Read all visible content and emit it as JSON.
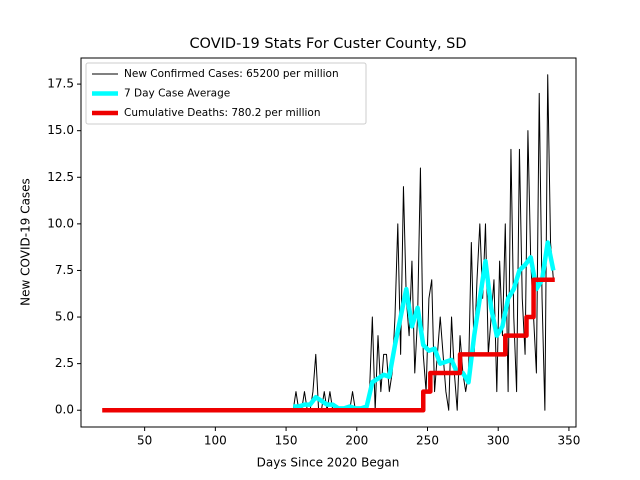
{
  "chart_data": {
    "type": "line",
    "title": "COVID-19 Stats For Custer County, SD",
    "xlabel": "Days Since 2020 Began",
    "ylabel": "New COVID-19 Cases",
    "xlim": [
      5,
      355
    ],
    "ylim": [
      -0.9,
      18.9
    ],
    "xticks": [
      50,
      100,
      150,
      200,
      250,
      300,
      350
    ],
    "yticks": [
      {
        "value": 0,
        "label": "0.0"
      },
      {
        "value": 2.5,
        "label": "2.5"
      },
      {
        "value": 5,
        "label": "5.0"
      },
      {
        "value": 7.5,
        "label": "7.5"
      },
      {
        "value": 10,
        "label": "10.0"
      },
      {
        "value": 12.5,
        "label": "12.5"
      },
      {
        "value": 15,
        "label": "15.0"
      },
      {
        "value": 17.5,
        "label": "17.5"
      }
    ],
    "legend": "upper left",
    "series": [
      {
        "name": "New Confirmed Cases: 65200 per million",
        "color": "#000000",
        "width": 1,
        "x": [
          155,
          157,
          159,
          161,
          163,
          165,
          167,
          169,
          171,
          173,
          175,
          177,
          179,
          181,
          183,
          185,
          187,
          189,
          191,
          193,
          195,
          197,
          199,
          201,
          203,
          205,
          207,
          209,
          211,
          213,
          215,
          217,
          219,
          221,
          223,
          225,
          227,
          229,
          231,
          233,
          235,
          237,
          239,
          241,
          243,
          245,
          247,
          249,
          251,
          253,
          255,
          257,
          259,
          261,
          263,
          265,
          267,
          269,
          271,
          273,
          275,
          277,
          279,
          281,
          283,
          285,
          287,
          289,
          291,
          293,
          295,
          297,
          299,
          301,
          303,
          305,
          307,
          309,
          311,
          313,
          315,
          317,
          319,
          321,
          323,
          325,
          327,
          329,
          331,
          333,
          335,
          337,
          339
        ],
        "values": [
          0,
          1,
          0,
          0,
          1,
          0,
          0,
          1,
          3,
          0,
          0,
          1,
          0,
          1,
          0,
          0,
          0,
          0,
          0,
          0,
          0,
          1,
          0,
          0,
          0,
          0,
          0,
          1,
          5,
          0,
          4,
          1,
          3,
          3,
          1,
          2,
          5,
          10,
          3,
          12,
          6,
          4,
          8,
          2,
          5,
          13,
          3,
          1,
          6,
          7,
          1,
          3,
          5,
          3,
          1,
          0,
          5,
          2,
          0,
          4,
          2,
          1,
          2,
          9,
          3,
          7,
          10,
          6,
          10,
          3,
          5,
          7,
          1,
          8,
          4,
          10,
          1,
          14,
          5,
          1,
          14,
          6,
          3,
          15,
          8,
          5,
          2,
          17,
          6,
          0,
          18,
          9,
          7
        ]
      },
      {
        "name": "7 Day Case Average",
        "color": "#00ffff",
        "width": 4.5,
        "x": [
          155,
          159,
          163,
          167,
          171,
          175,
          179,
          183,
          187,
          191,
          195,
          199,
          203,
          207,
          211,
          215,
          219,
          223,
          227,
          231,
          235,
          239,
          243,
          247,
          251,
          255,
          259,
          263,
          267,
          271,
          275,
          279,
          283,
          287,
          291,
          295,
          299,
          303,
          307,
          311,
          315,
          319,
          323,
          327,
          331,
          335,
          339
        ],
        "values": [
          0.2,
          0.2,
          0.3,
          0.3,
          0.7,
          0.5,
          0.3,
          0.3,
          0.1,
          0.1,
          0.2,
          0.1,
          0.1,
          0.2,
          1.5,
          1.7,
          1.9,
          1.8,
          3.5,
          5,
          6.5,
          4.5,
          5.5,
          3.5,
          3.2,
          3.3,
          2.5,
          2.6,
          2.7,
          2,
          2,
          1.5,
          4,
          6,
          8,
          5.5,
          4,
          4.5,
          6,
          6.5,
          7.5,
          7.8,
          8.2,
          6.5,
          7,
          9,
          7.5
        ]
      },
      {
        "name": "Cumulative Deaths: 780.2 per million",
        "color": "#ee0000",
        "width": 4.5,
        "x": [
          20,
          247,
          247,
          252,
          252,
          273,
          273,
          305,
          305,
          320,
          320,
          325,
          325,
          340
        ],
        "values": [
          0,
          0,
          1,
          1,
          2,
          2,
          3,
          3,
          4,
          4,
          5,
          5,
          7,
          7
        ]
      }
    ]
  }
}
